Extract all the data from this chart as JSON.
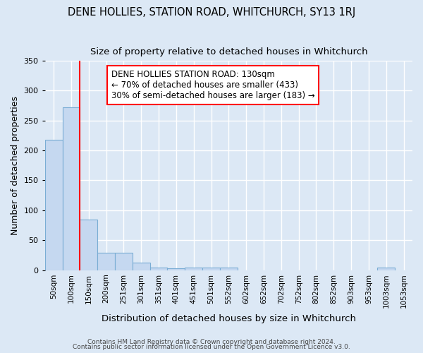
{
  "title": "DENE HOLLIES, STATION ROAD, WHITCHURCH, SY13 1RJ",
  "subtitle": "Size of property relative to detached houses in Whitchurch",
  "xlabel": "Distribution of detached houses by size in Whitchurch",
  "ylabel": "Number of detached properties",
  "bar_labels": [
    "50sqm",
    "100sqm",
    "150sqm",
    "200sqm",
    "251sqm",
    "301sqm",
    "351sqm",
    "401sqm",
    "451sqm",
    "501sqm",
    "552sqm",
    "602sqm",
    "652sqm",
    "702sqm",
    "752sqm",
    "802sqm",
    "852sqm",
    "903sqm",
    "953sqm",
    "1003sqm",
    "1053sqm"
  ],
  "bar_values": [
    218,
    272,
    85,
    29,
    29,
    13,
    4,
    3,
    4,
    4,
    4,
    0,
    0,
    0,
    0,
    0,
    0,
    0,
    0,
    4,
    0
  ],
  "bar_color": "#c5d8f0",
  "bar_edgecolor": "#7aadd4",
  "red_line_x": 1.5,
  "annotation_text": "DENE HOLLIES STATION ROAD: 130sqm\n← 70% of detached houses are smaller (433)\n30% of semi-detached houses are larger (183) →",
  "ylim": [
    0,
    350
  ],
  "yticks": [
    0,
    50,
    100,
    150,
    200,
    250,
    300,
    350
  ],
  "footer1": "Contains HM Land Registry data © Crown copyright and database right 2024.",
  "footer2": "Contains public sector information licensed under the Open Government Licence v3.0.",
  "background_color": "#dce8f5",
  "plot_bg_color": "#dce8f5",
  "grid_color": "#ffffff",
  "title_fontsize": 10.5,
  "subtitle_fontsize": 9.5,
  "annotation_fontsize": 8.5
}
